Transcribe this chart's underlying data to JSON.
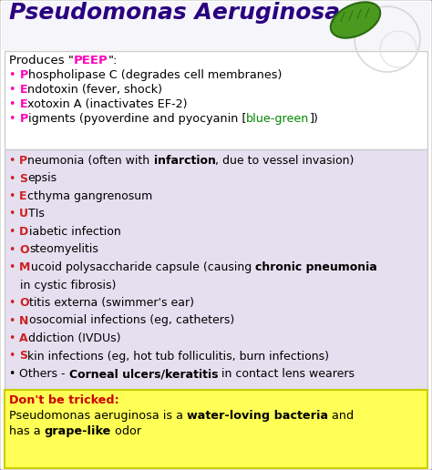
{
  "title": "Pseudomonas Aeruginosa",
  "title_color": "#2a0080",
  "bg_color": "#ffffff",
  "peep_intro_pre": "Produces \"",
  "peep_intro_mid": "PEEP",
  "peep_intro_post": "\":",
  "peep_letter_color": "#ff00bb",
  "peep_bluegreen_color": "#008800",
  "peep_items": [
    {
      "letter": "P",
      "rest": "hospholipase C (degrades cell membranes)",
      "suffix": "",
      "suffix_color": "",
      "suffix2": ""
    },
    {
      "letter": "E",
      "rest": "ndotoxin (fever, shock)",
      "suffix": "",
      "suffix_color": "",
      "suffix2": ""
    },
    {
      "letter": "E",
      "rest": "xotoxin A (inactivates EF-2)",
      "suffix": "",
      "suffix_color": "",
      "suffix2": ""
    },
    {
      "letter": "P",
      "rest": "igments (pyoverdine and pyocyanin [",
      "suffix": "blue-green",
      "suffix_color": "#008800",
      "suffix2": "])"
    }
  ],
  "inf_letter_color": "#cc2222",
  "infections_items": [
    {
      "bullet": true,
      "letter": "P",
      "pre": "neumonia (often with ",
      "bold": "infarction",
      "post": ", due to vessel invasion)"
    },
    {
      "bullet": true,
      "letter": "S",
      "pre": "epsis",
      "bold": "",
      "post": ""
    },
    {
      "bullet": true,
      "letter": "E",
      "pre": "cthyma gangrenosum",
      "bold": "",
      "post": ""
    },
    {
      "bullet": true,
      "letter": "U",
      "pre": "TIs",
      "bold": "",
      "post": ""
    },
    {
      "bullet": true,
      "letter": "D",
      "pre": "iabetic infection",
      "bold": "",
      "post": ""
    },
    {
      "bullet": true,
      "letter": "O",
      "pre": "steomyelitis",
      "bold": "",
      "post": ""
    },
    {
      "bullet": true,
      "letter": "M",
      "pre": "ucoid polysaccharide capsule (causing ",
      "bold": "chronic pneumonia",
      "post": ""
    },
    {
      "bullet": false,
      "letter": "",
      "pre": "   in cystic fibrosis)",
      "bold": "",
      "post": ""
    },
    {
      "bullet": true,
      "letter": "O",
      "pre": "titis externa (swimmer's ear)",
      "bold": "",
      "post": ""
    },
    {
      "bullet": true,
      "letter": "N",
      "pre": "osocomial infections (eg, catheters)",
      "bold": "",
      "post": ""
    },
    {
      "bullet": true,
      "letter": "A",
      "pre": "ddiction (IVDUs)",
      "bold": "",
      "post": ""
    },
    {
      "bullet": true,
      "letter": "S",
      "pre": "kin infections (eg, hot tub folliculitis, burn infections)",
      "bold": "",
      "post": ""
    },
    {
      "bullet": true,
      "letter": "",
      "pre": "Others - ",
      "bold": "Corneal ulcers/keratitis",
      "post": " in contact lens wearers"
    }
  ],
  "dbt_label": "Don't be tricked:",
  "dbt_label_color": "#cc0000",
  "dbt_line1_pre": "Pseudomonas aeruginosa is a ",
  "dbt_line1_bold": "water-loving bacteria",
  "dbt_line1_post": " and",
  "dbt_line2_pre": "has a ",
  "dbt_line2_bold": "grape-like",
  "dbt_line2_post": " odor",
  "sec1_bg": "#ffffff",
  "sec2_bg": "#e6dff0",
  "sec3_bg": "#ffff55",
  "outer_border": "#aaaaaa",
  "sec_border": "#cccccc"
}
